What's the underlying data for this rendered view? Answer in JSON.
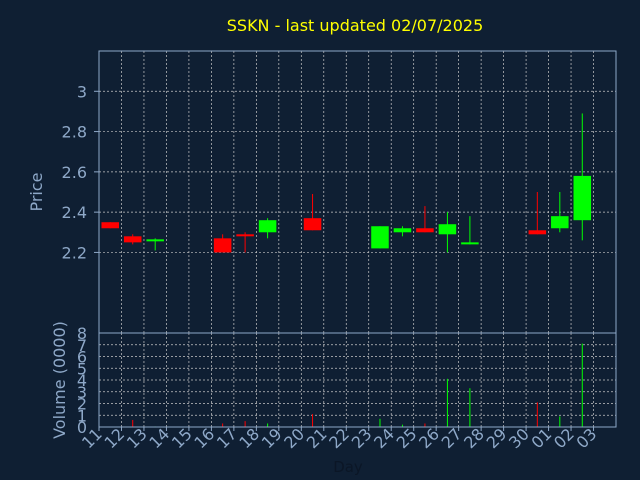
{
  "chart_data": {
    "type": "candlestick",
    "title": "SSKN - last updated 02/07/2025",
    "xlabel": "Day",
    "ylabel": "Price",
    "volume_label": "Volume (0000)",
    "x_ticks": [
      "11",
      "12",
      "13",
      "14",
      "15",
      "16",
      "17",
      "18",
      "19",
      "20",
      "21",
      "22",
      "23",
      "24",
      "25",
      "26",
      "27",
      "28",
      "29",
      "30",
      "01",
      "02",
      "03"
    ],
    "price_ticks": [
      "2.2",
      "2.4",
      "2.6",
      "2.8",
      "3"
    ],
    "volume_ticks": [
      "0",
      "1",
      "2",
      "3",
      "4",
      "5",
      "6",
      "7",
      "8"
    ],
    "price_range": [
      1.8,
      3.2
    ],
    "volume_range": [
      0,
      8
    ],
    "grid": true,
    "colors": {
      "up": "#00ff00",
      "down": "#ff0000",
      "title": "#ffff00",
      "axis": "#8ea8c8",
      "grid": "#c8c8c8",
      "background": "#0f1f33"
    },
    "candles": [
      {
        "day": "11",
        "open": 2.35,
        "high": 2.35,
        "low": 2.32,
        "close": 2.32,
        "volume": 0.0
      },
      {
        "day": "12",
        "open": 2.28,
        "high": 2.29,
        "low": 2.24,
        "close": 2.25,
        "volume": 0.6
      },
      {
        "day": "13",
        "open": 2.26,
        "high": 2.27,
        "low": 2.21,
        "close": 2.265,
        "volume": 0.05
      },
      {
        "day": "16",
        "open": 2.27,
        "high": 2.29,
        "low": 2.2,
        "close": 2.2,
        "volume": 0.3
      },
      {
        "day": "17",
        "open": 2.29,
        "high": 2.3,
        "low": 2.2,
        "close": 2.28,
        "volume": 0.5
      },
      {
        "day": "18",
        "open": 2.3,
        "high": 2.37,
        "low": 2.27,
        "close": 2.36,
        "volume": 0.3
      },
      {
        "day": "20",
        "open": 2.37,
        "high": 2.49,
        "low": 2.31,
        "close": 2.31,
        "volume": 1.1
      },
      {
        "day": "23",
        "open": 2.22,
        "high": 2.33,
        "low": 2.22,
        "close": 2.33,
        "volume": 0.7
      },
      {
        "day": "24",
        "open": 2.3,
        "high": 2.33,
        "low": 2.28,
        "close": 2.32,
        "volume": 0.2
      },
      {
        "day": "25",
        "open": 2.32,
        "high": 2.43,
        "low": 2.3,
        "close": 2.3,
        "volume": 0.3
      },
      {
        "day": "26",
        "open": 2.29,
        "high": 2.4,
        "low": 2.2,
        "close": 2.34,
        "volume": 4.1
      },
      {
        "day": "27",
        "open": 2.245,
        "high": 2.38,
        "low": 2.24,
        "close": 2.25,
        "volume": 3.3
      },
      {
        "day": "30",
        "open": 2.31,
        "high": 2.5,
        "low": 2.29,
        "close": 2.29,
        "volume": 2.1
      },
      {
        "day": "01",
        "open": 2.32,
        "high": 2.5,
        "low": 2.3,
        "close": 2.38,
        "volume": 0.9
      },
      {
        "day": "02",
        "open": 2.36,
        "high": 2.89,
        "low": 2.26,
        "close": 2.58,
        "volume": 7.1
      }
    ]
  }
}
